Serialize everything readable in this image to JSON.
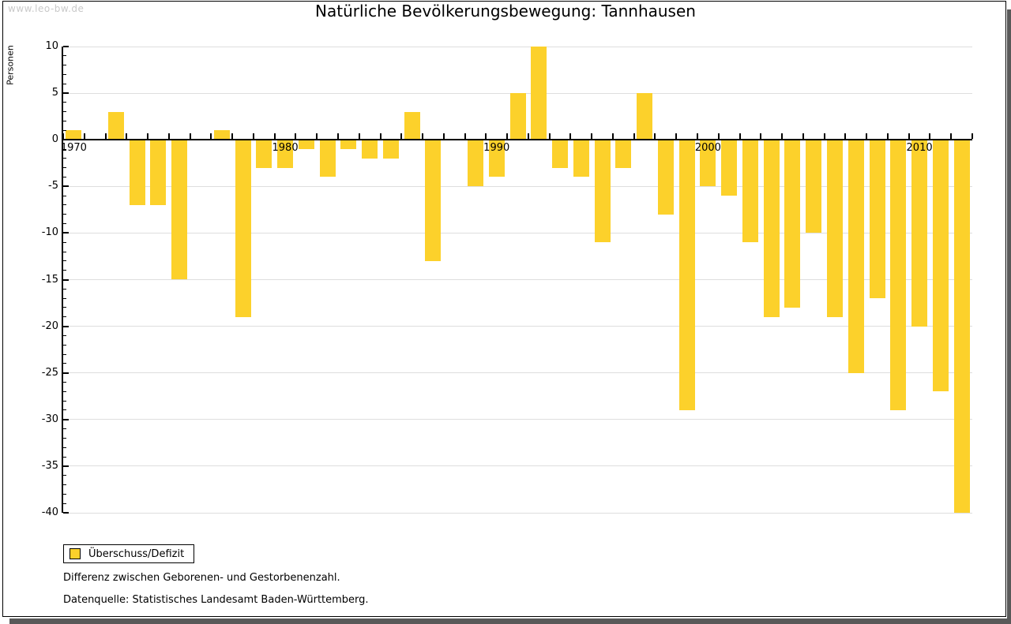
{
  "watermark": "www.leo-bw.de",
  "header": {
    "title": "Natürliche Bevölkerungsbewegung: Tannhausen"
  },
  "legend": {
    "label": "Überschuss/Defizit"
  },
  "footnotes": {
    "line1": "Differenz zwischen Geborenen- und Gestorbenenzahl.",
    "line2": "Datenquelle: Statistisches Landesamt Baden-Württemberg."
  },
  "colors": {
    "bar": "#FCD12B",
    "grid": "#DEDEDE",
    "axis": "#000000",
    "watermark": "#C9C9C9",
    "frame_shadow": "#595959"
  },
  "chart_data": {
    "type": "bar",
    "title": "Natürliche Bevölkerungsbewegung: Tannhausen",
    "xlabel": "",
    "ylabel": "Personen",
    "legend_entries": [
      "Überschuss/Defizit"
    ],
    "legend_position": "bottom-left",
    "grid": true,
    "ylim": [
      -40,
      10
    ],
    "y_tick_step": 5,
    "y_minor_tick_step": 1,
    "y_tick_labels": [
      "10",
      "5",
      "0",
      "-5",
      "-10",
      "-15",
      "-20",
      "-25",
      "-30",
      "-35",
      "-40"
    ],
    "x_decade_labels": [
      "1970",
      "1980",
      "1990",
      "2000",
      "2010"
    ],
    "categories": [
      1970,
      1971,
      1972,
      1973,
      1974,
      1975,
      1976,
      1977,
      1978,
      1979,
      1980,
      1981,
      1982,
      1983,
      1984,
      1985,
      1986,
      1987,
      1988,
      1989,
      1990,
      1991,
      1992,
      1993,
      1994,
      1995,
      1996,
      1997,
      1998,
      1999,
      2000,
      2001,
      2002,
      2003,
      2004,
      2005,
      2006,
      2007,
      2008,
      2009,
      2010,
      2011,
      2012
    ],
    "values": [
      1,
      0,
      3,
      -7,
      -7,
      -15,
      0,
      1,
      -19,
      -3,
      -3,
      -1,
      -4,
      -1,
      -2,
      -2,
      3,
      -13,
      0,
      -5,
      -4,
      5,
      10,
      -3,
      -4,
      -11,
      -3,
      5,
      -8,
      -29,
      -5,
      -6,
      -11,
      -19,
      -18,
      -10,
      -19,
      -25,
      -17,
      -29,
      -20,
      -27,
      -40
    ]
  }
}
